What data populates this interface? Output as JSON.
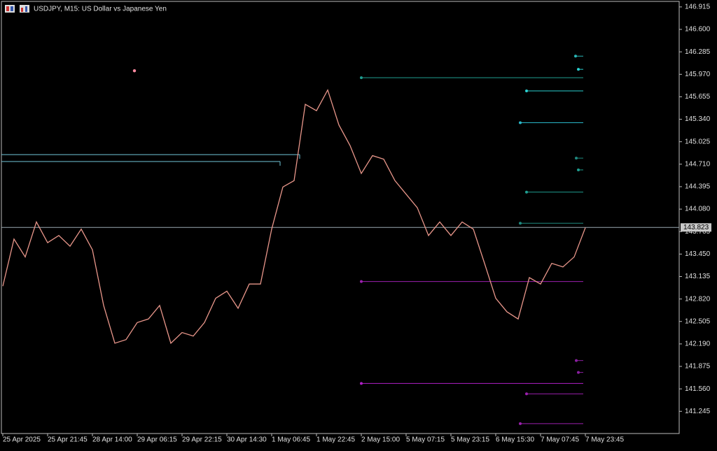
{
  "chart_data": {
    "type": "line",
    "title": "USDJPY, M15:  US Dollar vs Japanese Yen",
    "categories": [
      "25 Apr 2025",
      null,
      null,
      null,
      "25 Apr 21:45",
      null,
      null,
      null,
      "28 Apr 14:00",
      null,
      null,
      null,
      "29 Apr 06:15",
      null,
      null,
      null,
      "29 Apr 22:15",
      null,
      null,
      null,
      "30 Apr 14:30",
      null,
      null,
      null,
      "1 May 06:45",
      null,
      null,
      null,
      "1 May 22:45",
      null,
      null,
      null,
      "2 May 15:00",
      null,
      null,
      null,
      "5 May 07:15",
      null,
      null,
      null,
      "5 May 23:15",
      null,
      null,
      null,
      "6 May 15:30",
      null,
      null,
      null,
      "7 May 07:45",
      null,
      null,
      null,
      "7 May 23:45"
    ],
    "series": [
      {
        "name": "USDJPY",
        "color": "#e8968a",
        "values": [
          143.0,
          143.66,
          143.41,
          143.9,
          143.61,
          143.71,
          143.56,
          143.8,
          143.51,
          142.73,
          142.2,
          142.25,
          142.49,
          142.54,
          142.73,
          142.2,
          142.35,
          142.3,
          142.49,
          142.83,
          142.93,
          142.69,
          143.03,
          143.03,
          143.8,
          144.39,
          144.48,
          145.55,
          145.46,
          145.75,
          145.26,
          144.97,
          144.58,
          144.83,
          144.78,
          144.48,
          144.29,
          144.1,
          143.71,
          143.9,
          143.71,
          143.9,
          143.8,
          143.32,
          142.83,
          142.64,
          142.54,
          143.12,
          143.03,
          143.32,
          143.27,
          143.41,
          143.82
        ]
      }
    ],
    "ylim": [
      140.934,
      147.012
    ],
    "yticks": [
      146.915,
      {
        "value": 146.6,
        "label": "146.600"
      },
      146.285,
      {
        "value": 145.97,
        "label": "145.970"
      },
      145.655,
      {
        "value": 145.34,
        "label": "145.340"
      },
      145.025,
      {
        "value": 144.71,
        "label": "144.710"
      },
      144.395,
      {
        "value": 144.08,
        "label": "144.080"
      },
      143.765,
      {
        "value": 143.45,
        "label": "143.450"
      },
      143.135,
      {
        "value": 142.82,
        "label": "142.820"
      },
      142.505,
      {
        "value": 142.19,
        "label": "142.190"
      },
      141.875,
      {
        "value": 141.56,
        "label": "141.560"
      },
      141.245
    ],
    "current_price": 143.823,
    "levels": [
      {
        "value": 146.225,
        "color": "#2ab7b7"
      },
      {
        "value": 146.04,
        "color": "#2ad0d0"
      },
      {
        "value": 145.923,
        "color": "#1f9e90"
      },
      {
        "value": 145.738,
        "color": "#2ad0d0"
      },
      {
        "value": 145.291,
        "color": "#2ab7c8"
      },
      {
        "value": 144.795,
        "color": "#1f8a80"
      },
      {
        "value": 144.63,
        "color": "#1f9e90"
      },
      {
        "value": 144.319,
        "color": "#1f9e90"
      },
      {
        "value": 143.882,
        "color": "#1f8a80"
      },
      {
        "value": 143.065,
        "color": "#9b1fae"
      },
      {
        "value": 141.957,
        "color": "#8a1fa0"
      },
      {
        "value": 141.791,
        "color": "#8a1fa0"
      },
      {
        "value": 141.636,
        "color": "#b01fc8"
      },
      {
        "value": 141.49,
        "color": "#9b1fae"
      },
      {
        "value": 141.072,
        "color": "#9b1fae"
      }
    ],
    "ranges": [
      {
        "value": 144.844,
        "color": "#6fc6d8"
      },
      {
        "value": 144.747,
        "color": "#6fc6d8"
      }
    ],
    "marker": {
      "value": 146.02,
      "color": "#ff8aa0"
    }
  }
}
